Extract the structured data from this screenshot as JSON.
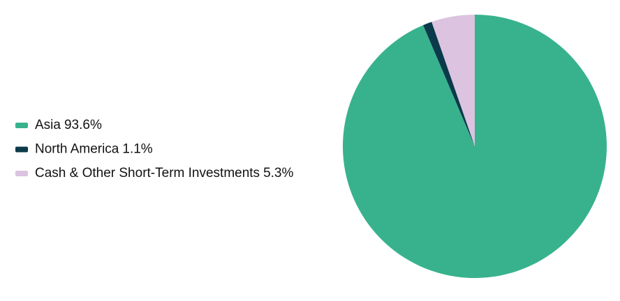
{
  "chart_data": {
    "type": "pie",
    "categories": [
      "Asia",
      "North America",
      "Cash & Other Short-Term Investments"
    ],
    "values": [
      93.6,
      1.1,
      5.3
    ],
    "value_labels": [
      "93.6%",
      "1.1%",
      "5.3%"
    ],
    "colors": [
      "#38b28d",
      "#0b3a4a",
      "#dcc3e0"
    ],
    "legend": "left"
  }
}
